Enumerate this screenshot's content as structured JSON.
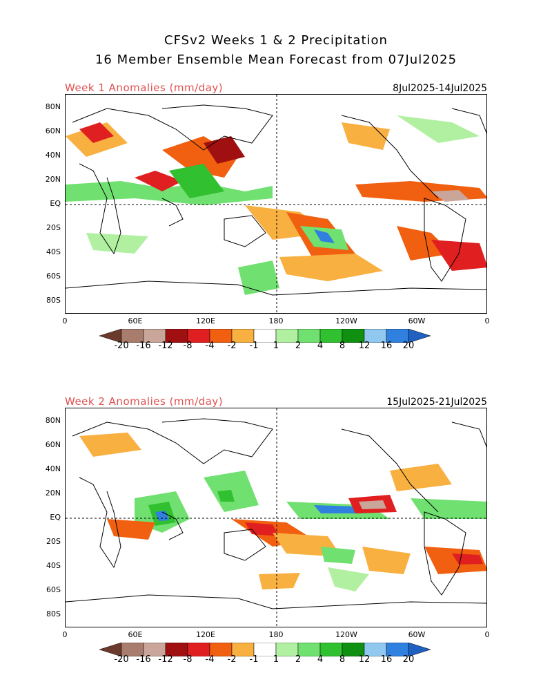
{
  "header": {
    "line1": "CFSv2 Weeks 1 & 2 Precipitation",
    "line2": "16 Member Ensemble Mean Forecast from 07Jul2025"
  },
  "panels": [
    {
      "title": "Week 1 Anomalies (mm/day)",
      "dates": "8Jul2025-14Jul2025"
    },
    {
      "title": "Week 2 Anomalies (mm/day)",
      "dates": "15Jul2025-21Jul2025"
    }
  ],
  "axes": {
    "lat_labels": [
      "80N",
      "60N",
      "40N",
      "20N",
      "EQ",
      "20S",
      "40S",
      "60S",
      "80S"
    ],
    "lon_labels": [
      "0",
      "60E",
      "120E",
      "180",
      "120W",
      "60W",
      "0"
    ]
  },
  "colorbar": {
    "labels": [
      "-20",
      "-16",
      "-12",
      "-8",
      "-4",
      "-2",
      "-1",
      "1",
      "2",
      "4",
      "8",
      "12",
      "16",
      "20"
    ],
    "colors": [
      "#6b3a2a",
      "#a87d6e",
      "#c9a59a",
      "#a01010",
      "#e02020",
      "#f06010",
      "#f8b040",
      "#ffffff",
      "#b0f0a0",
      "#70e070",
      "#30c030",
      "#109010",
      "#90c8f0",
      "#3080e0",
      "#2060c0"
    ]
  }
}
